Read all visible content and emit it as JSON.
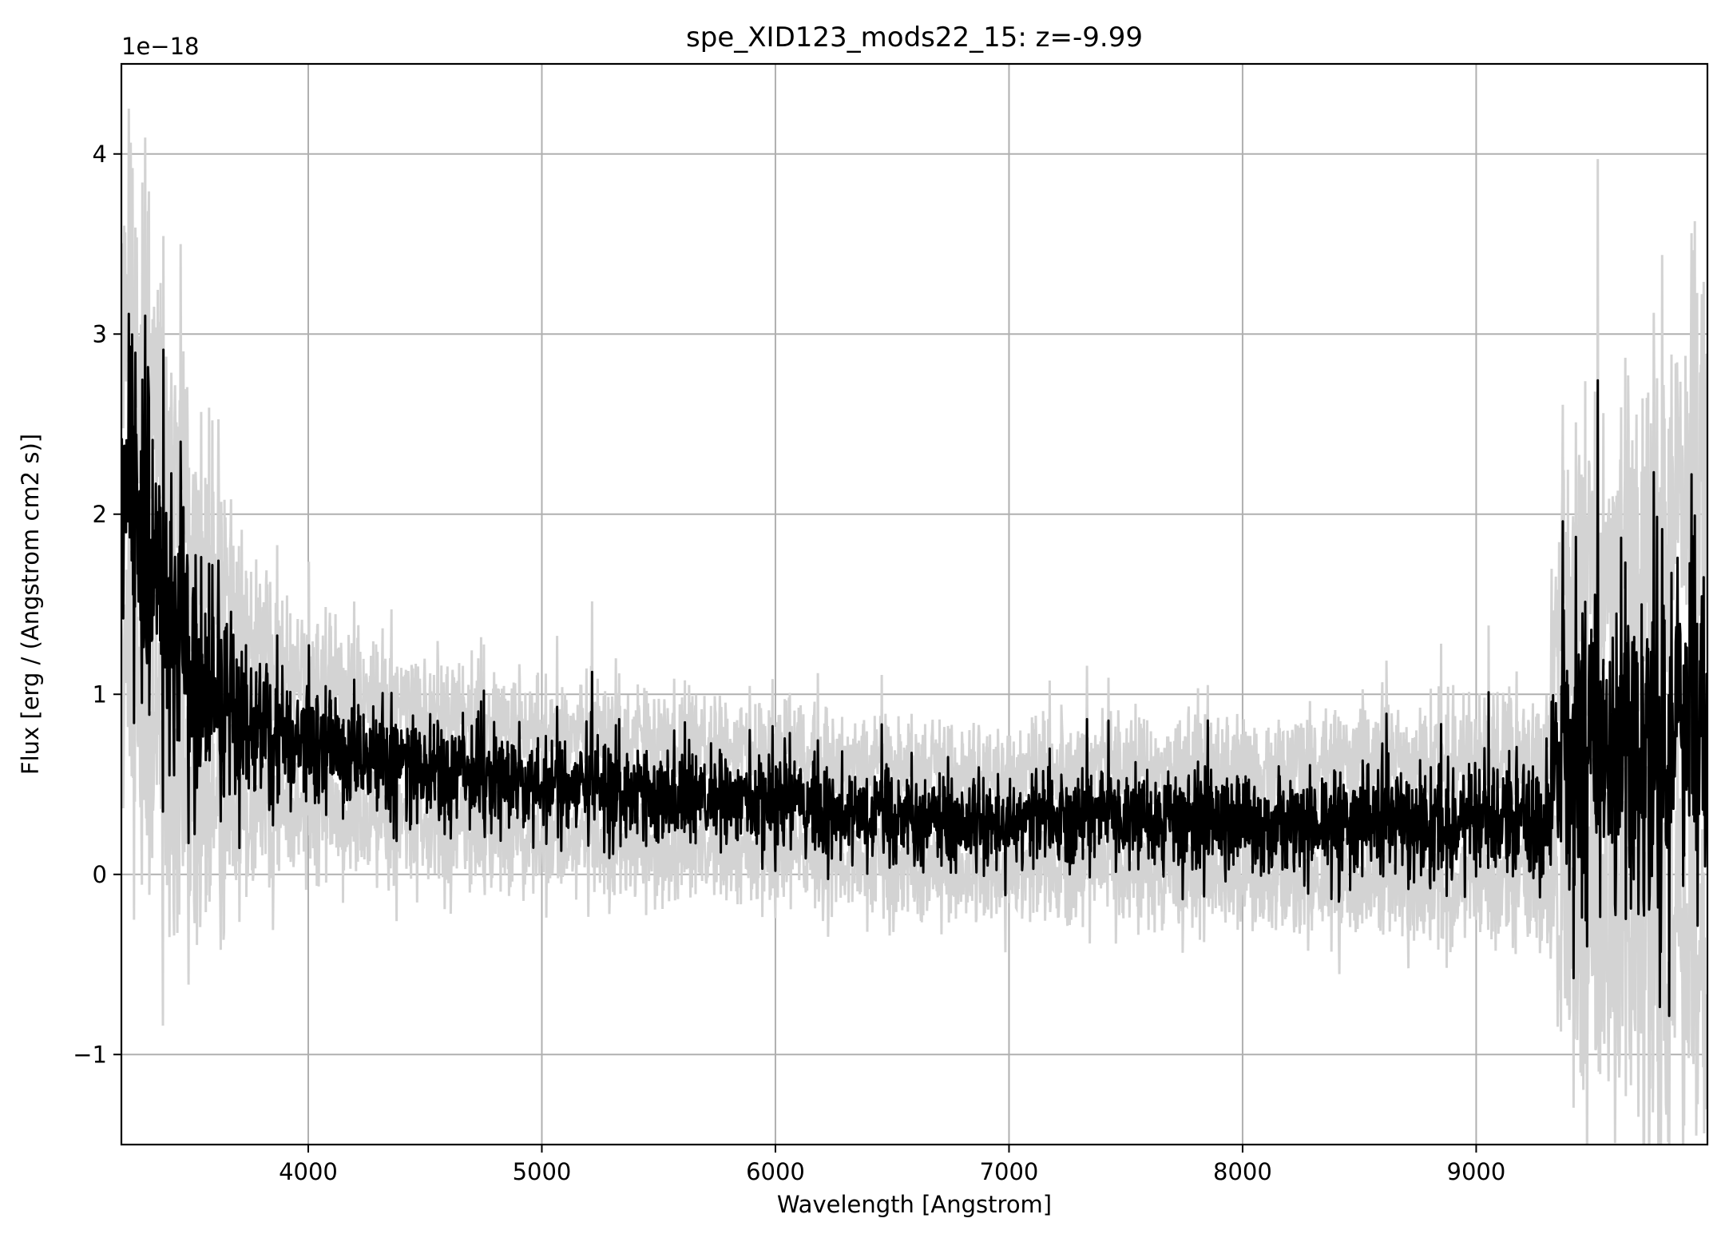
{
  "chart_data": {
    "type": "line",
    "title": "spe_XID123_mods22_15: z=-9.99",
    "xlabel": "Wavelength [Angstrom]",
    "ylabel": "Flux [erg / (Angstrom cm2 s)]",
    "y_offset_label": "1e−18",
    "xlim": [
      3200,
      9990
    ],
    "ylim": [
      -1.5,
      4.5
    ],
    "xticks": [
      4000,
      5000,
      6000,
      7000,
      8000,
      9000
    ],
    "xtick_labels": [
      "4000",
      "5000",
      "6000",
      "7000",
      "8000",
      "9000"
    ],
    "yticks": [
      -1,
      0,
      1,
      2,
      3,
      4
    ],
    "ytick_labels": [
      "−1",
      "0",
      "1",
      "2",
      "3",
      "4"
    ],
    "grid": true,
    "colors": {
      "flux": "#000000",
      "error": "#d3d3d3",
      "grid": "#b0b0b0"
    },
    "series": [
      {
        "role": "flux",
        "x": [
          3200,
          3250,
          3300,
          3350,
          3400,
          3450,
          3500,
          3550,
          3600,
          3700,
          3800,
          3900,
          4000,
          4200,
          4400,
          4600,
          4800,
          5000,
          5200,
          5400,
          5600,
          5800,
          6000,
          6200,
          6400,
          6600,
          6800,
          7000,
          7200,
          7400,
          7600,
          7800,
          8000,
          8200,
          8400,
          8600,
          8800,
          9000,
          9200,
          9300,
          9350,
          9400,
          9500,
          9600,
          9700,
          9800,
          9850,
          9900,
          9950,
          9990
        ],
        "y": [
          2.3,
          2.0,
          1.8,
          1.6,
          1.45,
          1.35,
          1.2,
          1.05,
          0.95,
          0.85,
          0.78,
          0.73,
          0.7,
          0.65,
          0.6,
          0.56,
          0.52,
          0.5,
          0.47,
          0.44,
          0.42,
          0.4,
          0.4,
          0.37,
          0.33,
          0.3,
          0.29,
          0.28,
          0.3,
          0.32,
          0.3,
          0.28,
          0.28,
          0.27,
          0.27,
          0.27,
          0.28,
          0.3,
          0.3,
          0.3,
          0.8,
          0.65,
          0.6,
          0.55,
          0.55,
          0.6,
          0.7,
          0.8,
          0.9,
          1.0
        ]
      },
      {
        "role": "error",
        "x": [
          3200,
          3300,
          3400,
          3500,
          3600,
          3700,
          3800,
          4000,
          4500,
          5000,
          5500,
          6000,
          6500,
          7000,
          7500,
          8000,
          8500,
          9000,
          9300,
          9350,
          9500,
          9700,
          9900,
          9990
        ],
        "y": [
          0.9,
          0.85,
          0.75,
          0.65,
          0.55,
          0.45,
          0.38,
          0.32,
          0.28,
          0.26,
          0.26,
          0.25,
          0.24,
          0.24,
          0.25,
          0.26,
          0.28,
          0.3,
          0.3,
          0.8,
          0.85,
          0.95,
          1.1,
          1.2
        ]
      }
    ]
  }
}
